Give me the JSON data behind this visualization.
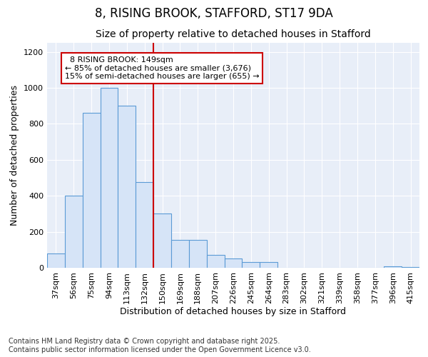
{
  "title1": "8, RISING BROOK, STAFFORD, ST17 9DA",
  "title2": "Size of property relative to detached houses in Stafford",
  "xlabel": "Distribution of detached houses by size in Stafford",
  "ylabel": "Number of detached properties",
  "categories": [
    "37sqm",
    "56sqm",
    "75sqm",
    "94sqm",
    "113sqm",
    "132sqm",
    "150sqm",
    "169sqm",
    "188sqm",
    "207sqm",
    "226sqm",
    "245sqm",
    "264sqm",
    "283sqm",
    "302sqm",
    "321sqm",
    "339sqm",
    "358sqm",
    "377sqm",
    "396sqm",
    "415sqm"
  ],
  "values": [
    80,
    400,
    860,
    1000,
    900,
    475,
    300,
    155,
    155,
    70,
    50,
    30,
    30,
    0,
    0,
    0,
    0,
    0,
    0,
    8,
    5
  ],
  "bar_color": "#d6e4f7",
  "bar_edge_color": "#5b9bd5",
  "marker_label": "8 RISING BROOK: 149sqm",
  "annotation_line1": "← 85% of detached houses are smaller (3,676)",
  "annotation_line2": "15% of semi-detached houses are larger (655) →",
  "vline_color": "#cc0000",
  "annotation_box_edge_color": "#cc0000",
  "ylim": [
    0,
    1250
  ],
  "yticks": [
    0,
    200,
    400,
    600,
    800,
    1000,
    1200
  ],
  "footer1": "Contains HM Land Registry data © Crown copyright and database right 2025.",
  "footer2": "Contains public sector information licensed under the Open Government Licence v3.0.",
  "bg_color": "#ffffff",
  "plot_bg_color": "#e8eef8",
  "title_fontsize": 12,
  "subtitle_fontsize": 10,
  "axis_label_fontsize": 9,
  "tick_fontsize": 8,
  "footer_fontsize": 7,
  "annotation_fontsize": 8
}
